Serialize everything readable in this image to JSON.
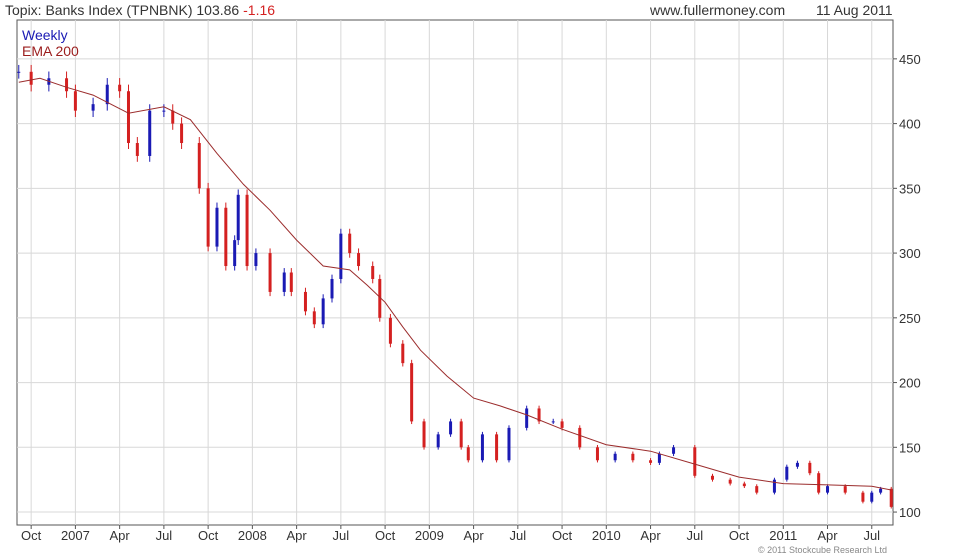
{
  "header": {
    "title": "Topix: Banks Index (TPNBNK) 103.86",
    "change": "-1.16",
    "site": "www.fullermoney.com",
    "date": "11 Aug 2011"
  },
  "legend": {
    "weekly": "Weekly",
    "ema": "EMA 200"
  },
  "copyright": "© 2011 Stockcube Research Ltd",
  "colors": {
    "up": "#1a1ab4",
    "down": "#d42020",
    "ema": "#9b2c2c",
    "grid": "#d8d8d8",
    "axis": "#555555"
  },
  "chart_data": {
    "type": "line",
    "series": [
      {
        "name": "Weekly",
        "x": [
          2006.68,
          2006.75,
          2006.85,
          2006.95,
          2007.0,
          2007.1,
          2007.18,
          2007.25,
          2007.3,
          2007.35,
          2007.42,
          2007.5,
          2007.55,
          2007.6,
          2007.7,
          2007.75,
          2007.8,
          2007.85,
          2007.9,
          2007.92,
          2007.97,
          2008.02,
          2008.1,
          2008.18,
          2008.22,
          2008.3,
          2008.35,
          2008.4,
          2008.45,
          2008.5,
          2008.55,
          2008.6,
          2008.68,
          2008.72,
          2008.78,
          2008.85,
          2008.9,
          2008.97,
          2009.05,
          2009.12,
          2009.18,
          2009.22,
          2009.3,
          2009.38,
          2009.45,
          2009.55,
          2009.62,
          2009.7,
          2009.75,
          2009.85,
          2009.95,
          2010.05,
          2010.15,
          2010.25,
          2010.3,
          2010.38,
          2010.5,
          2010.6,
          2010.7,
          2010.78,
          2010.85,
          2010.95,
          2011.02,
          2011.08,
          2011.15,
          2011.2,
          2011.25,
          2011.35,
          2011.45,
          2011.5,
          2011.55,
          2011.61
        ],
        "values": [
          440,
          430,
          435,
          425,
          410,
          415,
          430,
          425,
          385,
          375,
          410,
          410,
          400,
          385,
          350,
          305,
          335,
          290,
          310,
          345,
          290,
          300,
          270,
          285,
          270,
          255,
          245,
          265,
          280,
          315,
          300,
          290,
          280,
          250,
          230,
          215,
          170,
          150,
          160,
          170,
          150,
          140,
          160,
          140,
          165,
          180,
          170,
          170,
          165,
          150,
          140,
          145,
          140,
          138,
          145,
          150,
          128,
          125,
          122,
          120,
          115,
          125,
          135,
          138,
          130,
          115,
          120,
          115,
          108,
          115,
          118,
          104
        ]
      },
      {
        "name": "EMA 200",
        "x": [
          2006.68,
          2006.8,
          2006.95,
          2007.1,
          2007.3,
          2007.5,
          2007.65,
          2007.8,
          2007.95,
          2008.1,
          2008.25,
          2008.4,
          2008.55,
          2008.65,
          2008.75,
          2008.85,
          2008.95,
          2009.1,
          2009.25,
          2009.4,
          2009.55,
          2009.75,
          2010.0,
          2010.25,
          2010.5,
          2010.75,
          2011.0,
          2011.25,
          2011.5,
          2011.61
        ],
        "values": [
          432,
          435,
          428,
          422,
          408,
          413,
          403,
          377,
          353,
          333,
          310,
          290,
          287,
          275,
          262,
          243,
          225,
          205,
          188,
          182,
          175,
          164,
          152,
          147,
          137,
          127,
          122,
          121,
          120,
          117
        ]
      }
    ],
    "ylim": [
      90,
      480
    ],
    "xlim": [
      2006.67,
      2011.62
    ],
    "yticks": [
      100,
      150,
      200,
      250,
      300,
      350,
      400,
      450
    ],
    "xticks": [
      {
        "x": 2006.75,
        "label": "Oct"
      },
      {
        "x": 2007.0,
        "label": "2007"
      },
      {
        "x": 2007.25,
        "label": "Apr"
      },
      {
        "x": 2007.5,
        "label": "Jul"
      },
      {
        "x": 2007.75,
        "label": "Oct"
      },
      {
        "x": 2008.0,
        "label": "2008"
      },
      {
        "x": 2008.25,
        "label": "Apr"
      },
      {
        "x": 2008.5,
        "label": "Jul"
      },
      {
        "x": 2008.75,
        "label": "Oct"
      },
      {
        "x": 2009.0,
        "label": "2009"
      },
      {
        "x": 2009.25,
        "label": "Apr"
      },
      {
        "x": 2009.5,
        "label": "Jul"
      },
      {
        "x": 2009.75,
        "label": "Oct"
      },
      {
        "x": 2010.0,
        "label": "2010"
      },
      {
        "x": 2010.25,
        "label": "Apr"
      },
      {
        "x": 2010.5,
        "label": "Jul"
      },
      {
        "x": 2010.75,
        "label": "Oct"
      },
      {
        "x": 2011.0,
        "label": "2011"
      },
      {
        "x": 2011.25,
        "label": "Apr"
      },
      {
        "x": 2011.5,
        "label": "Jul"
      }
    ],
    "grid": true,
    "yaxis_side": "right",
    "legend_position": "top-left"
  }
}
